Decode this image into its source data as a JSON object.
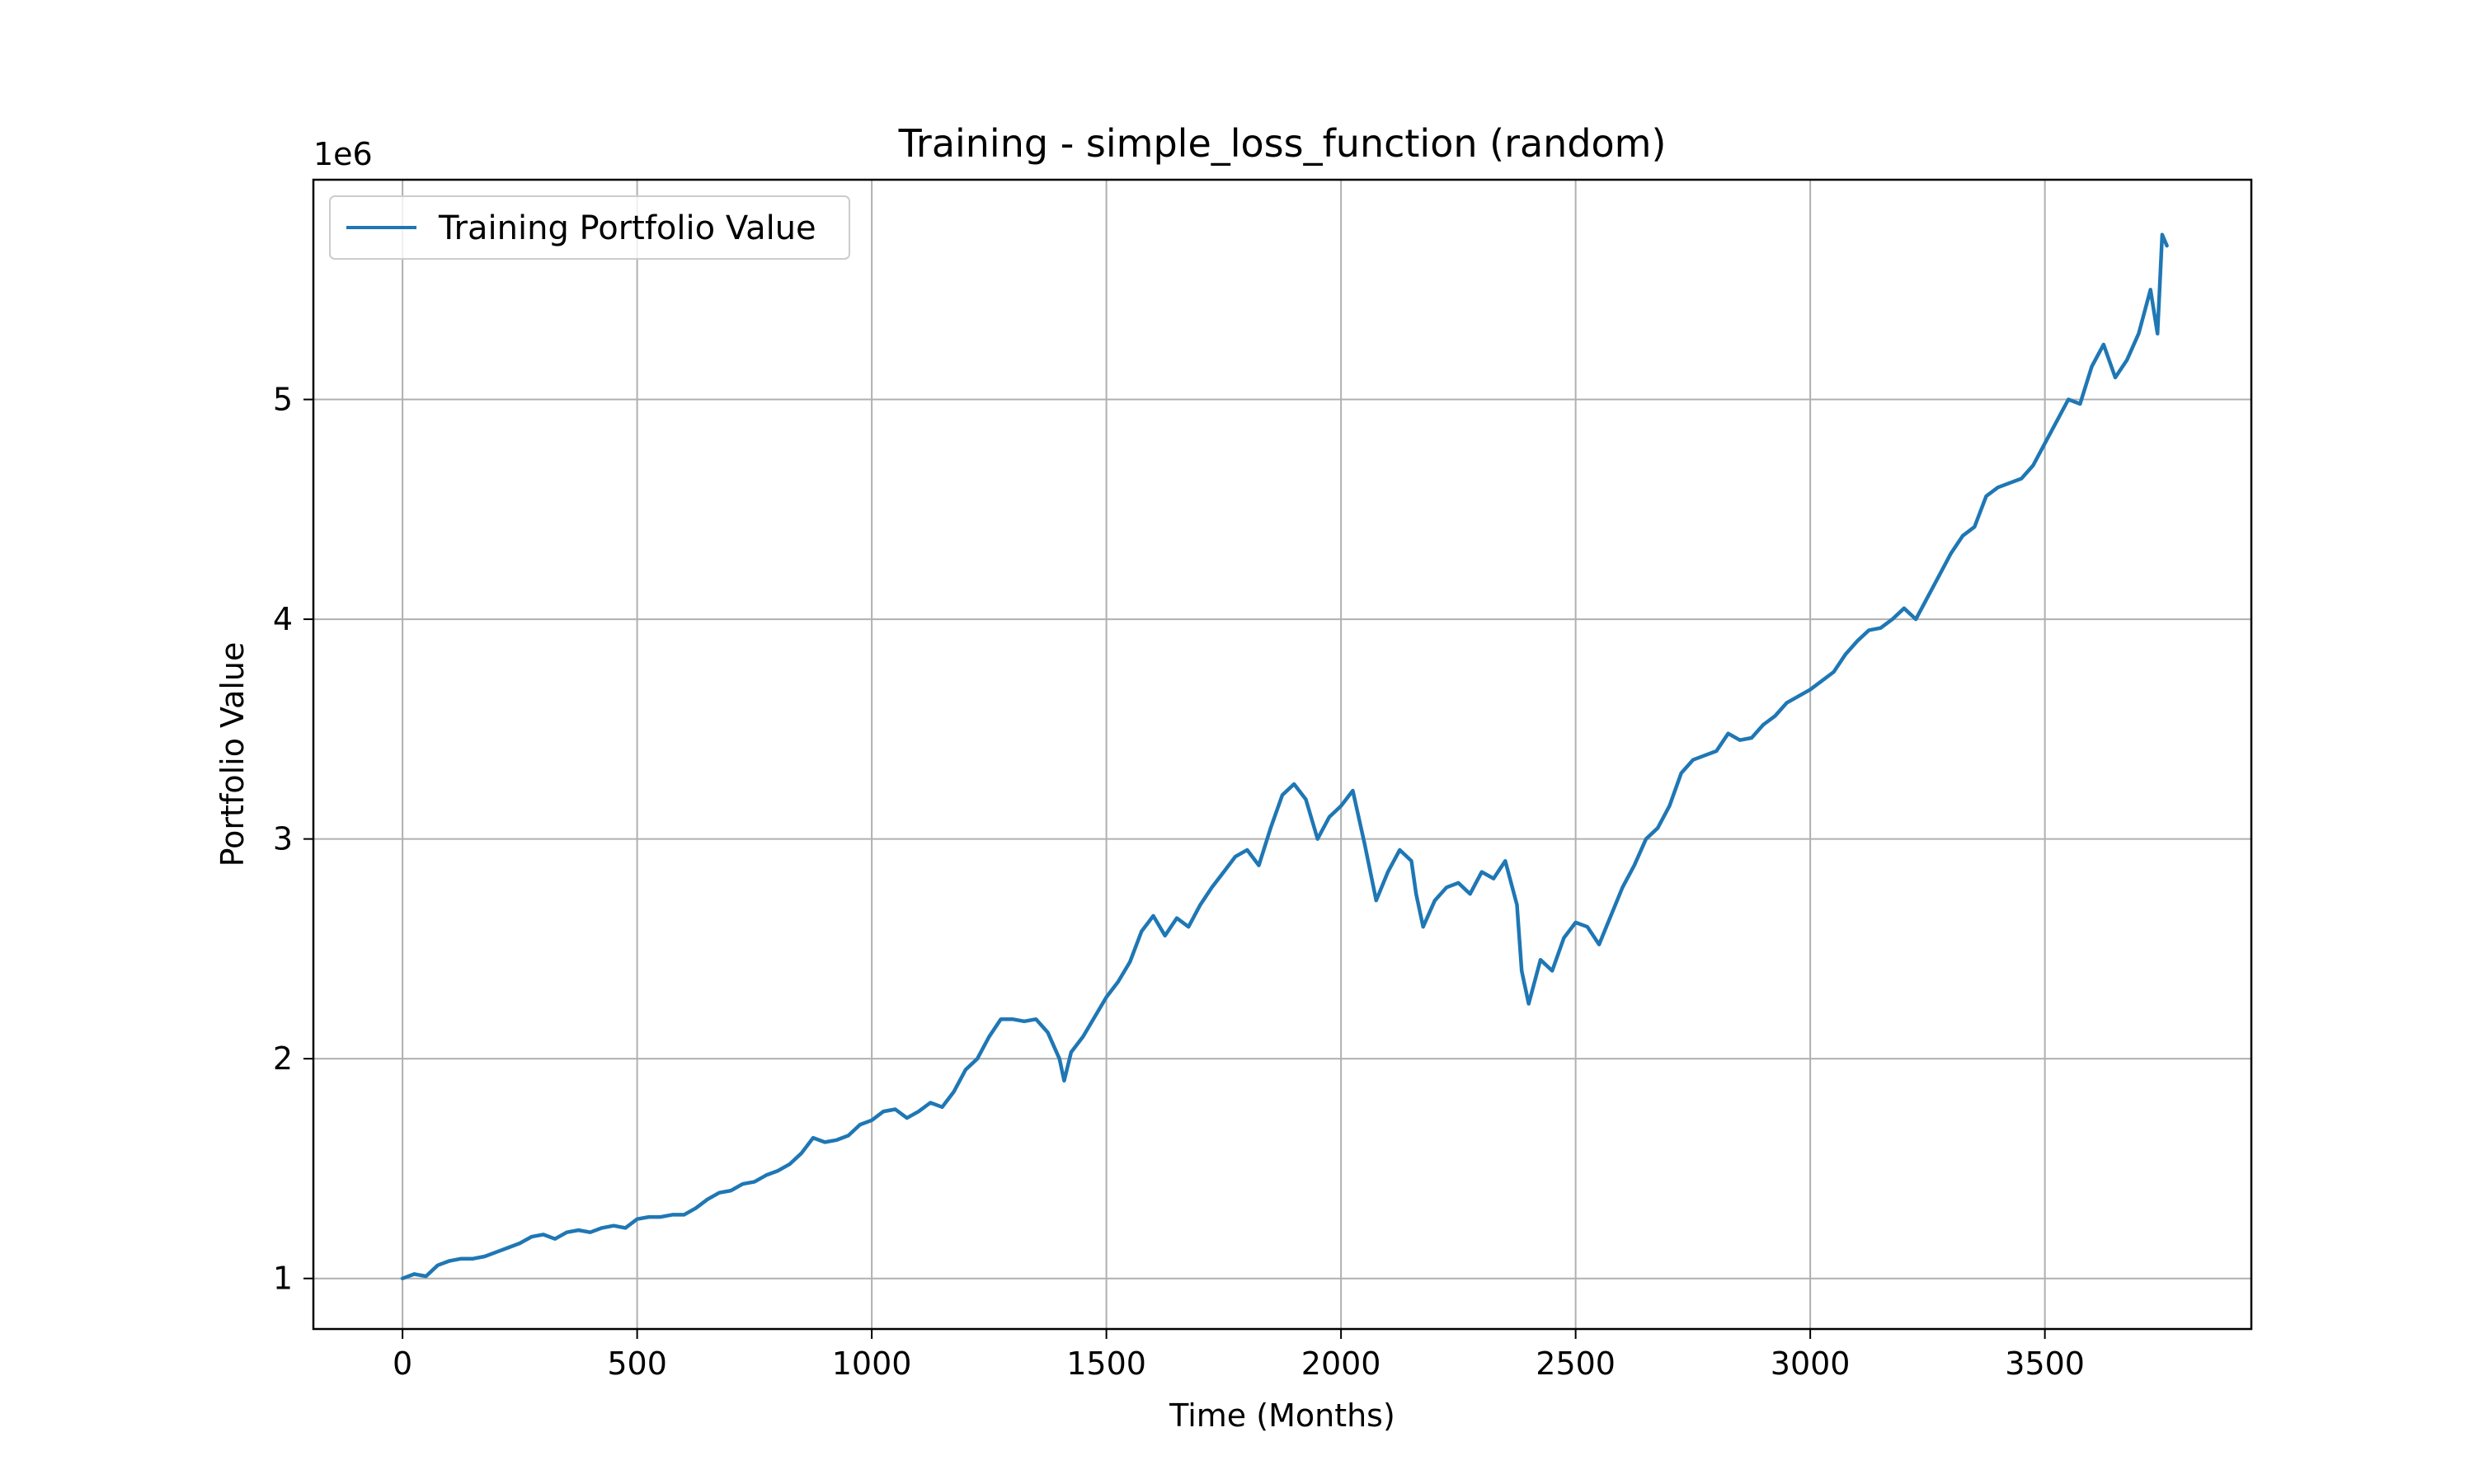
{
  "chart_data": {
    "type": "line",
    "title": "Training - simple_loss_function (random)",
    "xlabel": "Time (Months)",
    "ylabel": "Portfolio Value",
    "y_offset_label": "1e6",
    "xlim": [
      -190,
      3940
    ],
    "ylim": [
      770000,
      6000000
    ],
    "x_ticks": [
      0,
      500,
      1000,
      1500,
      2000,
      2500,
      3000,
      3500
    ],
    "y_ticks": [
      1000000,
      2000000,
      3000000,
      4000000,
      5000000
    ],
    "y_tick_labels": [
      "1",
      "2",
      "3",
      "4",
      "5"
    ],
    "grid": true,
    "legend_position": "upper-left",
    "series": [
      {
        "name": "Training Portfolio Value",
        "color": "#1f77b4",
        "x": [
          0,
          25,
          50,
          75,
          100,
          125,
          150,
          175,
          200,
          225,
          250,
          275,
          300,
          325,
          350,
          375,
          400,
          425,
          450,
          475,
          500,
          525,
          550,
          575,
          600,
          625,
          650,
          675,
          700,
          725,
          750,
          775,
          800,
          825,
          850,
          875,
          900,
          925,
          950,
          975,
          1000,
          1025,
          1050,
          1075,
          1100,
          1125,
          1150,
          1175,
          1200,
          1225,
          1250,
          1275,
          1300,
          1325,
          1350,
          1375,
          1400,
          1410,
          1425,
          1450,
          1475,
          1500,
          1525,
          1550,
          1575,
          1600,
          1625,
          1650,
          1675,
          1700,
          1725,
          1750,
          1775,
          1800,
          1825,
          1850,
          1875,
          1900,
          1925,
          1950,
          1975,
          2000,
          2025,
          2050,
          2075,
          2100,
          2125,
          2150,
          2160,
          2175,
          2200,
          2225,
          2250,
          2275,
          2300,
          2325,
          2350,
          2375,
          2385,
          2400,
          2425,
          2450,
          2475,
          2500,
          2525,
          2550,
          2575,
          2600,
          2625,
          2650,
          2675,
          2700,
          2725,
          2750,
          2775,
          2800,
          2825,
          2850,
          2875,
          2900,
          2925,
          2950,
          2975,
          3000,
          3025,
          3050,
          3075,
          3100,
          3125,
          3150,
          3175,
          3200,
          3225,
          3250,
          3275,
          3300,
          3325,
          3350,
          3375,
          3400,
          3425,
          3450,
          3475,
          3500,
          3525,
          3550,
          3575,
          3600,
          3625,
          3650,
          3675,
          3700,
          3725,
          3740,
          3750,
          3760
        ],
        "y": [
          1000000,
          1020000,
          1010000,
          1060000,
          1080000,
          1090000,
          1090000,
          1100000,
          1120000,
          1140000,
          1160000,
          1190000,
          1200000,
          1180000,
          1210000,
          1220000,
          1210000,
          1230000,
          1240000,
          1230000,
          1270000,
          1280000,
          1280000,
          1290000,
          1290000,
          1320000,
          1360000,
          1390000,
          1400000,
          1430000,
          1440000,
          1470000,
          1490000,
          1520000,
          1570000,
          1640000,
          1620000,
          1630000,
          1650000,
          1700000,
          1720000,
          1760000,
          1770000,
          1730000,
          1760000,
          1800000,
          1780000,
          1850000,
          1950000,
          2000000,
          2100000,
          2180000,
          2180000,
          2170000,
          2180000,
          2120000,
          2000000,
          1900000,
          2030000,
          2100000,
          2190000,
          2280000,
          2350000,
          2440000,
          2580000,
          2650000,
          2560000,
          2640000,
          2600000,
          2700000,
          2780000,
          2850000,
          2920000,
          2950000,
          2880000,
          3050000,
          3200000,
          3250000,
          3180000,
          3000000,
          3100000,
          3150000,
          3220000,
          2980000,
          2720000,
          2850000,
          2950000,
          2900000,
          2750000,
          2600000,
          2720000,
          2780000,
          2800000,
          2750000,
          2850000,
          2820000,
          2900000,
          2700000,
          2400000,
          2250000,
          2450000,
          2400000,
          2550000,
          2620000,
          2600000,
          2520000,
          2650000,
          2780000,
          2880000,
          3000000,
          3050000,
          3150000,
          3300000,
          3360000,
          3380000,
          3400000,
          3480000,
          3450000,
          3460000,
          3520000,
          3560000,
          3620000,
          3650000,
          3680000,
          3720000,
          3760000,
          3840000,
          3900000,
          3950000,
          3960000,
          4000000,
          4050000,
          4000000,
          4100000,
          4200000,
          4300000,
          4380000,
          4420000,
          4560000,
          4600000,
          4620000,
          4640000,
          4700000,
          4800000,
          4900000,
          5000000,
          4980000,
          5150000,
          5250000,
          5100000,
          5180000,
          5300000,
          5500000,
          5300000,
          5750000,
          5700000
        ]
      }
    ]
  }
}
